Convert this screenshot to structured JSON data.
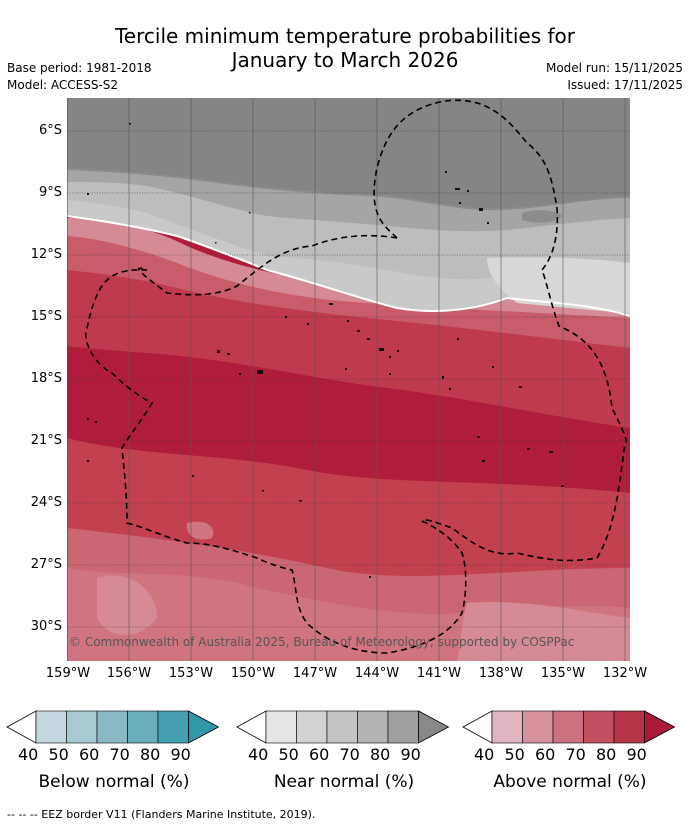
{
  "title": {
    "line1": "Tercile minimum temperature probabilities for",
    "line2": "January to March 2026"
  },
  "meta": {
    "base_period": "Base period: 1981-2018",
    "model": "Model: ACCESS-S2",
    "model_run": "Model run: 15/11/2025",
    "issued": "Issued: 17/11/2025"
  },
  "map": {
    "lat_labels": [
      "6°S",
      "9°S",
      "12°S",
      "15°S",
      "18°S",
      "21°S",
      "24°S",
      "27°S",
      "30°S"
    ],
    "lon_labels": [
      "159°W",
      "156°W",
      "153°W",
      "150°W",
      "147°W",
      "144°W",
      "141°W",
      "138°W",
      "135°W",
      "132°W"
    ],
    "credit": "© Commonwealth of Australia 2025, Bureau of Meteorology, supported by COSPPac"
  },
  "colorbars": [
    {
      "label": "Below normal (%)",
      "ticks": [
        "40",
        "50",
        "60",
        "70",
        "80",
        "90"
      ],
      "colors": [
        "#c2d7de",
        "#a6c9d1",
        "#8ab9c5",
        "#6aaebd",
        "#44a1b3",
        "#2f97a8"
      ]
    },
    {
      "label": "Near normal (%)",
      "ticks": [
        "40",
        "50",
        "60",
        "70",
        "80",
        "90"
      ],
      "colors": [
        "#e5e5e5",
        "#d3d3d3",
        "#c4c4c4",
        "#b4b4b4",
        "#a0a0a0",
        "#888888"
      ]
    },
    {
      "label": "Above normal (%)",
      "ticks": [
        "40",
        "50",
        "60",
        "70",
        "80",
        "90"
      ],
      "colors": [
        "#e0b5bd",
        "#d6939e",
        "#cb7180",
        "#c2505f",
        "#b53446",
        "#ab1b37"
      ]
    }
  ],
  "footer": "--  --  -- EEZ border V11 (Flanders Marine Institute, 2019)."
}
